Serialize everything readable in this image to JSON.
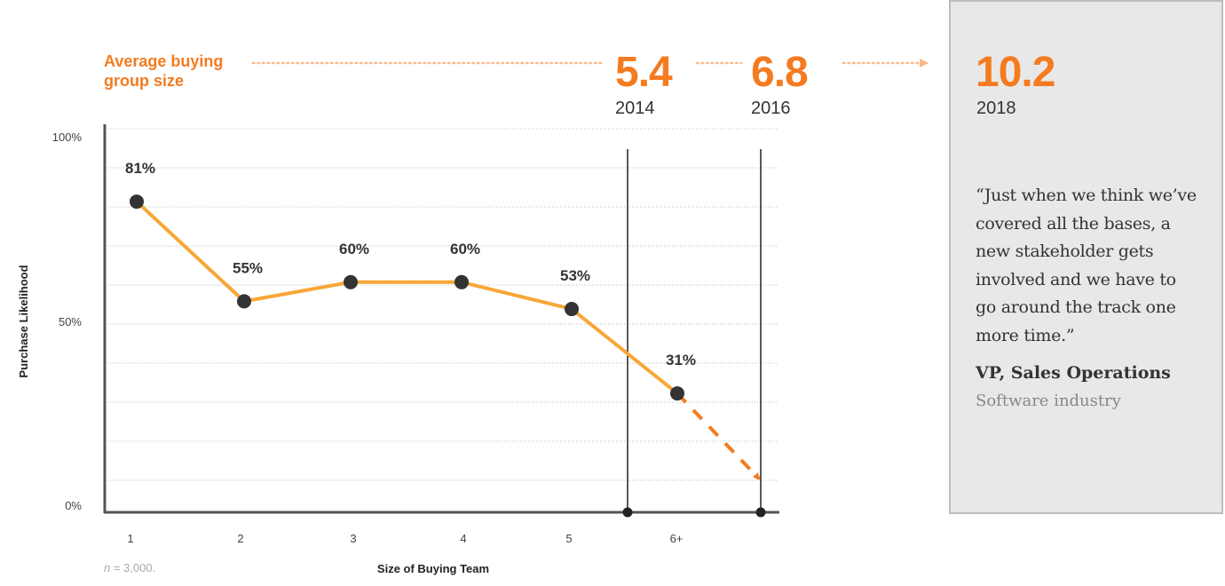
{
  "header": {
    "label": "Average buying group size",
    "values": [
      {
        "value": "5.4",
        "year": "2014"
      },
      {
        "value": "6.8",
        "year": "2016"
      },
      {
        "value": "10.2",
        "year": "2018"
      }
    ]
  },
  "quote": {
    "text": "“Just when we think we’ve covered all the bases, a new stakeholder gets involved and we have to go around the track one more time.”",
    "attribution_title": "VP, Sales Operations",
    "attribution_sub": "Software industry"
  },
  "note": "n = 3,000.",
  "colors": {
    "accent": "#f47b20",
    "line": "#f7a738",
    "dot": "#333333",
    "axis": "#555555",
    "box_bg": "#e8e8e8",
    "box_border": "#bdbdbd"
  },
  "chart_data": {
    "type": "line",
    "categories": [
      "1",
      "2",
      "3",
      "4",
      "5",
      "6+"
    ],
    "values": [
      81,
      55,
      60,
      60,
      53,
      31
    ],
    "data_labels": [
      "81%",
      "55%",
      "60%",
      "60%",
      "53%",
      "31%"
    ],
    "projected_trend": "dashed arrow continuing downward after 6+",
    "xlabel": "Size of Buying Team",
    "ylabel": "Purchase Likelihood",
    "y_ticks": [
      "0%",
      "50%",
      "100%"
    ],
    "ylim": [
      0,
      100
    ],
    "grid": true
  }
}
